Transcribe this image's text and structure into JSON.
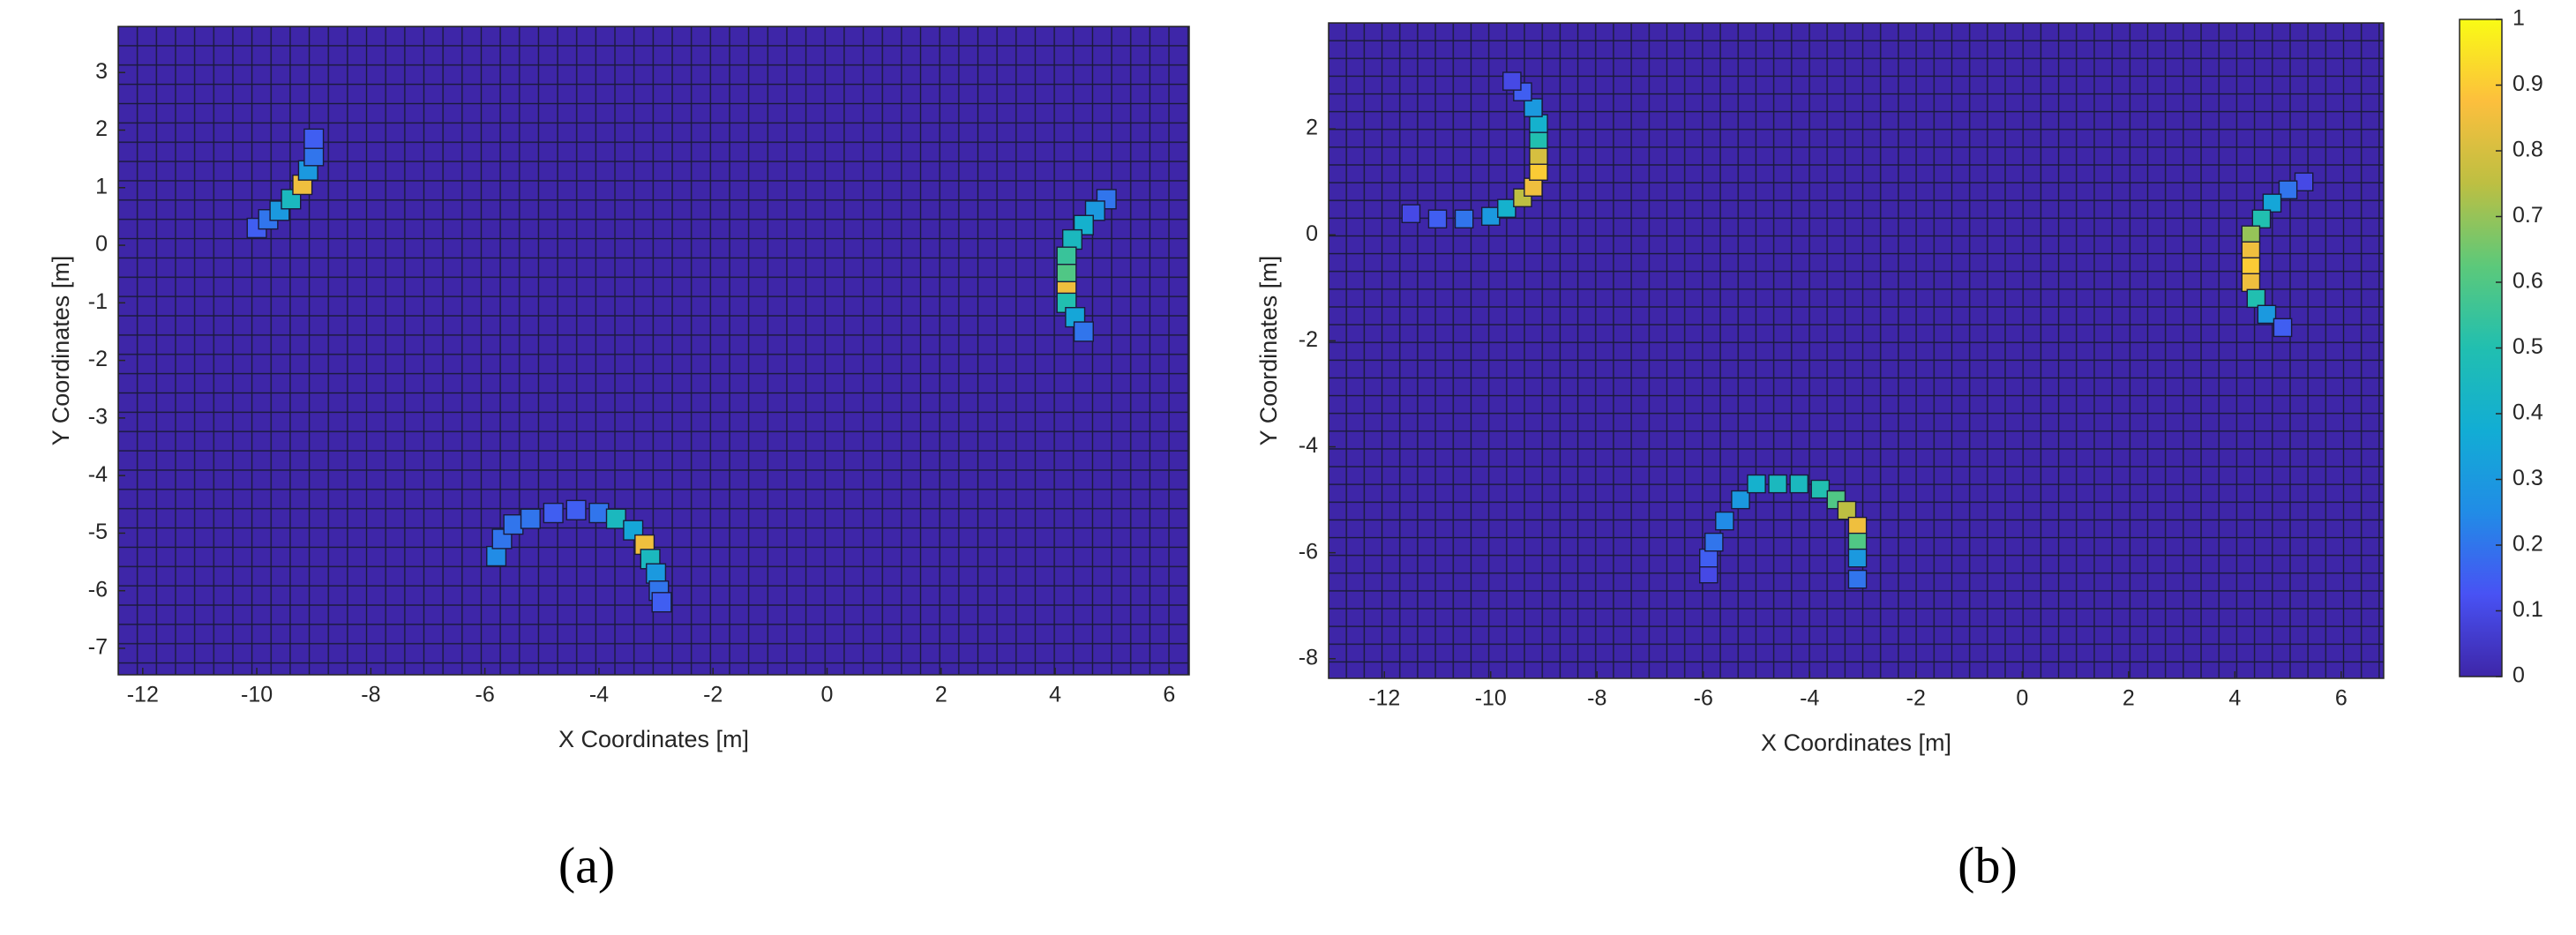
{
  "chart_data": [
    {
      "type": "heatmap",
      "caption": "(a)",
      "x_label": "X Coordinates [m]",
      "y_label": "Y Coordinates [m]",
      "xlim": [
        -12.43,
        6.35
      ],
      "ylim": [
        -7.46,
        3.8
      ],
      "xticks": [
        -12,
        -10,
        -8,
        -6,
        -4,
        -2,
        0,
        2,
        4,
        6
      ],
      "yticks": [
        -7,
        -6,
        -5,
        -4,
        -3,
        -2,
        -1,
        0,
        1,
        2,
        3
      ],
      "clim": [
        0,
        1
      ],
      "colormap": "parula",
      "x": [
        -10.0,
        -9.8,
        -9.6,
        -9.4,
        -9.2,
        -9.1,
        -9.0,
        -9.0,
        4.9,
        4.7,
        4.5,
        4.3,
        4.2,
        4.2,
        4.2,
        4.2,
        4.35,
        4.5,
        -5.8,
        -5.7,
        -5.5,
        -5.2,
        -4.8,
        -4.4,
        -4.0,
        -3.7,
        -3.4,
        -3.2,
        -3.1,
        -3.0,
        -2.95,
        -2.9
      ],
      "y": [
        0.3,
        0.45,
        0.6,
        0.8,
        1.05,
        1.3,
        1.55,
        1.85,
        0.8,
        0.6,
        0.35,
        0.1,
        -0.2,
        -0.5,
        -0.8,
        -1.0,
        -1.25,
        -1.5,
        -5.4,
        -5.1,
        -4.85,
        -4.75,
        -4.65,
        -4.6,
        -4.65,
        -4.75,
        -4.95,
        -5.2,
        -5.45,
        -5.7,
        -6.0,
        -6.2
      ],
      "values": [
        0.15,
        0.2,
        0.3,
        0.45,
        0.85,
        0.3,
        0.2,
        0.15,
        0.2,
        0.3,
        0.4,
        0.45,
        0.55,
        0.6,
        0.85,
        0.5,
        0.35,
        0.2,
        0.25,
        0.2,
        0.2,
        0.2,
        0.15,
        0.15,
        0.2,
        0.45,
        0.35,
        0.85,
        0.45,
        0.3,
        0.2,
        0.15
      ]
    },
    {
      "type": "heatmap",
      "caption": "(b)",
      "x_label": "X Coordinates [m]",
      "y_label": "Y Coordinates [m]",
      "xlim": [
        -13.05,
        6.8
      ],
      "ylim": [
        -8.37,
        4.0
      ],
      "xticks": [
        -12,
        -10,
        -8,
        -6,
        -4,
        -2,
        0,
        2,
        4,
        6
      ],
      "yticks": [
        -8,
        -6,
        -4,
        -2,
        0,
        2
      ],
      "clim": [
        0,
        1
      ],
      "colormap": "parula",
      "colorbar_ticks": [
        0,
        0.1,
        0.2,
        0.3,
        0.4,
        0.5,
        0.6,
        0.7,
        0.8,
        0.9,
        1
      ],
      "x": [
        -11.5,
        -11.0,
        -10.5,
        -10.0,
        -9.7,
        -9.4,
        -9.2,
        -9.1,
        -9.1,
        -9.1,
        -9.1,
        -9.2,
        -9.4,
        -9.6,
        5.3,
        5.0,
        4.7,
        4.5,
        4.3,
        4.3,
        4.3,
        4.3,
        4.4,
        4.6,
        4.9,
        -5.9,
        -5.9,
        -5.8,
        -5.6,
        -5.3,
        -5.0,
        -4.6,
        -4.2,
        -3.8,
        -3.5,
        -3.3,
        -3.1,
        -3.1,
        -3.1,
        -3.1
      ],
      "y": [
        0.4,
        0.3,
        0.3,
        0.35,
        0.5,
        0.7,
        0.9,
        1.2,
        1.5,
        1.8,
        2.1,
        2.4,
        2.7,
        2.9,
        1.0,
        0.85,
        0.6,
        0.3,
        0.0,
        -0.3,
        -0.6,
        -0.9,
        -1.2,
        -1.5,
        -1.75,
        -6.4,
        -6.1,
        -5.8,
        -5.4,
        -5.0,
        -4.7,
        -4.7,
        -4.7,
        -4.8,
        -5.0,
        -5.2,
        -5.5,
        -5.8,
        -6.1,
        -6.5
      ],
      "values": [
        0.1,
        0.15,
        0.2,
        0.3,
        0.4,
        0.75,
        0.85,
        0.9,
        0.8,
        0.5,
        0.4,
        0.3,
        0.15,
        0.1,
        0.1,
        0.2,
        0.35,
        0.5,
        0.7,
        0.85,
        0.9,
        0.85,
        0.5,
        0.3,
        0.15,
        0.1,
        0.15,
        0.2,
        0.25,
        0.3,
        0.4,
        0.45,
        0.45,
        0.5,
        0.6,
        0.75,
        0.85,
        0.6,
        0.3,
        0.2
      ]
    }
  ]
}
